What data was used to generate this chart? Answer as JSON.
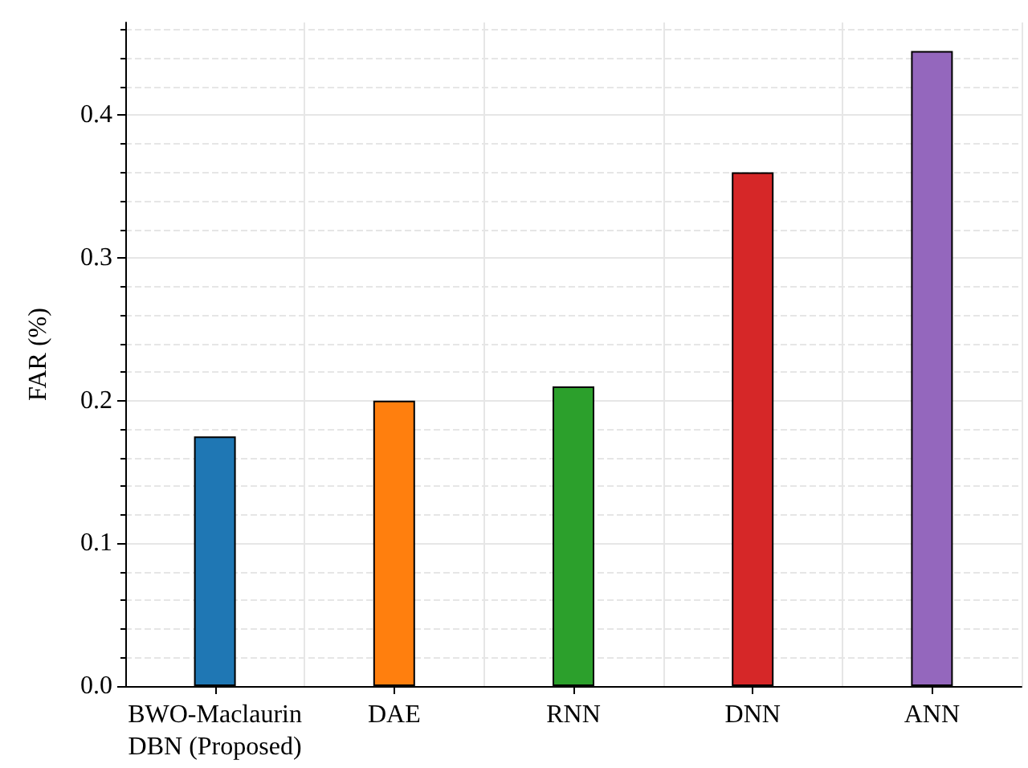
{
  "chart_data": {
    "type": "bar",
    "ylabel": "FAR (%)",
    "categories": [
      "BWO-Maclaurin\nDBN (Proposed)",
      "DAE",
      "RNN",
      "DNN",
      "ANN"
    ],
    "values": [
      0.175,
      0.2,
      0.21,
      0.36,
      0.445
    ],
    "colors": [
      "#1f77b4",
      "#ff7f0e",
      "#2ca02c",
      "#d62728",
      "#9467bd"
    ],
    "ylim": [
      0,
      0.465
    ],
    "yticks": [
      {
        "value": 0,
        "label": "0.0"
      },
      0.1,
      0.2,
      0.3,
      0.4
    ],
    "grid": true
  }
}
